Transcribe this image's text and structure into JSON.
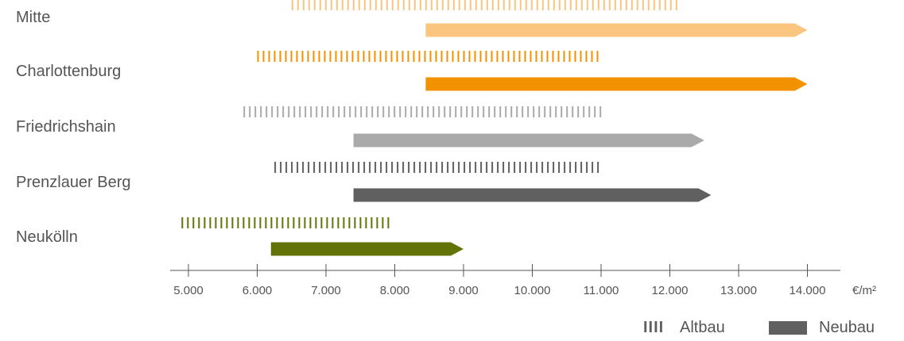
{
  "chart_data": {
    "type": "bar",
    "subtype": "price-range",
    "unit": "€/m²",
    "xlim": [
      4850,
      15000
    ],
    "ticks": [
      5000,
      6000,
      7000,
      8000,
      9000,
      10000,
      11000,
      12000,
      13000,
      14000
    ],
    "tick_labels": [
      "5.000",
      "6.000",
      "7.000",
      "8.000",
      "9.000",
      "10.000",
      "11.000",
      "12.000",
      "13.000",
      "14.000"
    ],
    "categories": [
      "Mitte",
      "Charlottenburg",
      "Friedrichshain",
      "Prenzlauer Berg",
      "Neukölln"
    ],
    "series": [
      {
        "name": "Altbau",
        "style": "dashed",
        "ranges": [
          [
            6500,
            12100
          ],
          [
            6000,
            11000
          ],
          [
            5800,
            11000
          ],
          [
            6250,
            11000
          ],
          [
            4900,
            7900
          ]
        ]
      },
      {
        "name": "Neubau",
        "style": "solid-arrow",
        "ranges": [
          [
            8450,
            14000
          ],
          [
            8450,
            14000
          ],
          [
            7400,
            12500
          ],
          [
            7400,
            12600
          ],
          [
            6200,
            9000
          ]
        ]
      }
    ],
    "colors": [
      "#f9c57f",
      "#f39200",
      "#aaaaaa",
      "#606060",
      "#637307"
    ],
    "legend": {
      "position": "bottom-right",
      "altbau_label": "Altbau",
      "neubau_label": "Neubau",
      "altbau_icon": "IIII"
    }
  }
}
